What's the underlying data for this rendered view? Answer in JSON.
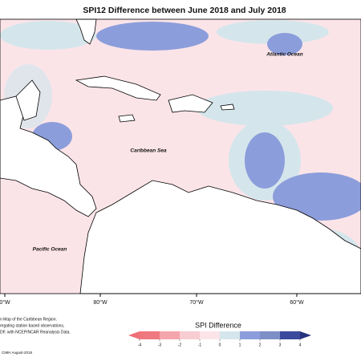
{
  "header": {
    "title": "SPI12 Difference between June 2018 and July 2018"
  },
  "map": {
    "labels": [
      "Atlantic Ocean",
      "Caribbean Sea",
      "Pacific Ocean"
    ],
    "longitudes": [
      "0°W",
      "80°W",
      "70°W",
      "60°W"
    ]
  },
  "notes": [
    "n Map of the Caribbean Region.",
    "regating station based observations,",
    "DF, with NCEP/NCAR Reanalysis Data.",
    "CIMH August-2018"
  ],
  "legend": {
    "title": "SPI Difference",
    "ticks": [
      -4,
      -3,
      -2,
      -1,
      0,
      1,
      2,
      3,
      4
    ],
    "colors": [
      "#f0787f",
      "#f4a6ac",
      "#f7cdd1",
      "#fbe4e8",
      "#d4e6ec",
      "#8c9ddb",
      "#7d8fc6",
      "#3b4a9c"
    ],
    "low_color": "#ef6f77",
    "high_color": "#26337f"
  }
}
